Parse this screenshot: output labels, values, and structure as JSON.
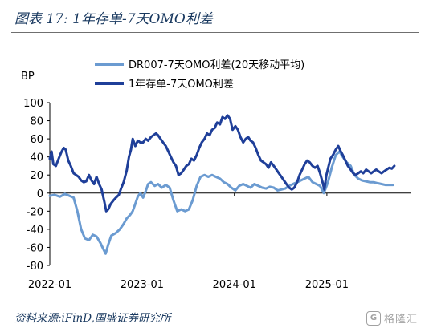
{
  "header": {
    "title": "图表 17:  1年存单-7天OMO利差"
  },
  "footer": {
    "source": "资料来源:iFinD,国盛证券研究所",
    "watermark_text": "格隆汇"
  },
  "colors": {
    "series_light": "#6b9bd1",
    "series_dark": "#1f3f99",
    "title_text": "#17375e",
    "axis": "#000000"
  },
  "chart_data": {
    "type": "line",
    "title": "",
    "ylabel": "BP",
    "xlabel": "",
    "ylim": [
      -80,
      100
    ],
    "yticks": [
      -80,
      -60,
      -40,
      -20,
      0,
      20,
      40,
      60,
      80,
      100
    ],
    "xlim": [
      "2022-01-01",
      "2025-12-01"
    ],
    "xticks": [
      "2022-01",
      "2023-01",
      "2024-01",
      "2025-01"
    ],
    "grid": false,
    "legend_position": "top",
    "series": [
      {
        "name": "DR007-7天OMO利差(20天移动平均)",
        "color": "#6b9bd1",
        "points": [
          [
            "2022-01-01",
            -3
          ],
          [
            "2022-01-20",
            -2
          ],
          [
            "2022-02-10",
            -4
          ],
          [
            "2022-03-01",
            -1
          ],
          [
            "2022-03-20",
            -3
          ],
          [
            "2022-04-05",
            -5
          ],
          [
            "2022-04-20",
            -20
          ],
          [
            "2022-05-05",
            -40
          ],
          [
            "2022-05-20",
            -50
          ],
          [
            "2022-06-05",
            -52
          ],
          [
            "2022-06-20",
            -46
          ],
          [
            "2022-07-05",
            -48
          ],
          [
            "2022-07-20",
            -55
          ],
          [
            "2022-08-01",
            -62
          ],
          [
            "2022-08-10",
            -67
          ],
          [
            "2022-08-20",
            -57
          ],
          [
            "2022-09-01",
            -47
          ],
          [
            "2022-09-20",
            -44
          ],
          [
            "2022-10-05",
            -40
          ],
          [
            "2022-10-20",
            -34
          ],
          [
            "2022-11-01",
            -28
          ],
          [
            "2022-11-15",
            -24
          ],
          [
            "2022-11-25",
            -20
          ],
          [
            "2022-12-05",
            -12
          ],
          [
            "2022-12-15",
            -4
          ],
          [
            "2022-12-25",
            0
          ],
          [
            "2023-01-05",
            -5
          ],
          [
            "2023-01-15",
            2
          ],
          [
            "2023-01-25",
            10
          ],
          [
            "2023-02-05",
            12
          ],
          [
            "2023-02-20",
            8
          ],
          [
            "2023-03-05",
            10
          ],
          [
            "2023-03-20",
            6
          ],
          [
            "2023-04-05",
            9
          ],
          [
            "2023-04-20",
            6
          ],
          [
            "2023-05-05",
            -8
          ],
          [
            "2023-05-20",
            -20
          ],
          [
            "2023-06-05",
            -18
          ],
          [
            "2023-06-20",
            -20
          ],
          [
            "2023-07-05",
            -18
          ],
          [
            "2023-07-20",
            -8
          ],
          [
            "2023-08-05",
            8
          ],
          [
            "2023-08-20",
            18
          ],
          [
            "2023-09-05",
            20
          ],
          [
            "2023-09-20",
            18
          ],
          [
            "2023-10-05",
            20
          ],
          [
            "2023-10-20",
            18
          ],
          [
            "2023-11-05",
            16
          ],
          [
            "2023-11-20",
            12
          ],
          [
            "2023-12-05",
            10
          ],
          [
            "2023-12-20",
            6
          ],
          [
            "2024-01-05",
            3
          ],
          [
            "2024-01-20",
            8
          ],
          [
            "2024-02-05",
            10
          ],
          [
            "2024-02-20",
            8
          ],
          [
            "2024-03-05",
            6
          ],
          [
            "2024-03-20",
            10
          ],
          [
            "2024-04-05",
            8
          ],
          [
            "2024-04-20",
            6
          ],
          [
            "2024-05-05",
            5
          ],
          [
            "2024-05-20",
            7
          ],
          [
            "2024-06-05",
            6
          ],
          [
            "2024-06-20",
            3
          ],
          [
            "2024-07-05",
            4
          ],
          [
            "2024-07-20",
            5
          ],
          [
            "2024-08-05",
            8
          ],
          [
            "2024-08-20",
            10
          ],
          [
            "2024-09-05",
            12
          ],
          [
            "2024-09-20",
            14
          ],
          [
            "2024-10-05",
            16
          ],
          [
            "2024-10-20",
            18
          ],
          [
            "2024-11-05",
            12
          ],
          [
            "2024-11-20",
            10
          ],
          [
            "2024-12-05",
            8
          ],
          [
            "2024-12-20",
            0
          ],
          [
            "2025-01-05",
            12
          ],
          [
            "2025-01-20",
            28
          ],
          [
            "2025-02-05",
            42
          ],
          [
            "2025-02-20",
            46
          ],
          [
            "2025-03-05",
            40
          ],
          [
            "2025-03-20",
            34
          ],
          [
            "2025-04-05",
            30
          ],
          [
            "2025-04-20",
            20
          ],
          [
            "2025-05-05",
            16
          ],
          [
            "2025-05-20",
            14
          ],
          [
            "2025-06-05",
            13
          ],
          [
            "2025-06-20",
            12
          ],
          [
            "2025-07-05",
            12
          ],
          [
            "2025-07-20",
            11
          ],
          [
            "2025-08-05",
            10
          ],
          [
            "2025-08-20",
            9
          ],
          [
            "2025-09-05",
            9
          ],
          [
            "2025-09-20",
            9
          ]
        ]
      },
      {
        "name": "1年存单-7天OMO利差",
        "color": "#1f3f99",
        "points": [
          [
            "2022-01-01",
            38
          ],
          [
            "2022-01-08",
            46
          ],
          [
            "2022-01-15",
            32
          ],
          [
            "2022-01-25",
            30
          ],
          [
            "2022-02-05",
            38
          ],
          [
            "2022-02-15",
            45
          ],
          [
            "2022-02-25",
            50
          ],
          [
            "2022-03-05",
            48
          ],
          [
            "2022-03-15",
            36
          ],
          [
            "2022-03-25",
            30
          ],
          [
            "2022-04-05",
            22
          ],
          [
            "2022-04-15",
            20
          ],
          [
            "2022-04-25",
            18
          ],
          [
            "2022-05-05",
            14
          ],
          [
            "2022-05-15",
            12
          ],
          [
            "2022-05-25",
            13
          ],
          [
            "2022-06-05",
            20
          ],
          [
            "2022-06-15",
            14
          ],
          [
            "2022-06-25",
            10
          ],
          [
            "2022-07-05",
            18
          ],
          [
            "2022-07-15",
            10
          ],
          [
            "2022-07-25",
            4
          ],
          [
            "2022-08-05",
            -10
          ],
          [
            "2022-08-12",
            -20
          ],
          [
            "2022-08-20",
            -18
          ],
          [
            "2022-08-30",
            -12
          ],
          [
            "2022-09-10",
            -8
          ],
          [
            "2022-09-20",
            -5
          ],
          [
            "2022-10-01",
            -2
          ],
          [
            "2022-10-10",
            5
          ],
          [
            "2022-10-20",
            12
          ],
          [
            "2022-11-01",
            25
          ],
          [
            "2022-11-10",
            40
          ],
          [
            "2022-11-18",
            48
          ],
          [
            "2022-11-25",
            60
          ],
          [
            "2022-12-05",
            52
          ],
          [
            "2022-12-15",
            58
          ],
          [
            "2022-12-25",
            56
          ],
          [
            "2023-01-05",
            56
          ],
          [
            "2023-01-15",
            60
          ],
          [
            "2023-01-25",
            58
          ],
          [
            "2023-02-05",
            62
          ],
          [
            "2023-02-15",
            64
          ],
          [
            "2023-02-25",
            66
          ],
          [
            "2023-03-05",
            64
          ],
          [
            "2023-03-15",
            60
          ],
          [
            "2023-03-25",
            56
          ],
          [
            "2023-04-05",
            52
          ],
          [
            "2023-04-15",
            46
          ],
          [
            "2023-04-25",
            40
          ],
          [
            "2023-05-05",
            34
          ],
          [
            "2023-05-15",
            30
          ],
          [
            "2023-05-25",
            20
          ],
          [
            "2023-06-05",
            22
          ],
          [
            "2023-06-15",
            26
          ],
          [
            "2023-06-25",
            30
          ],
          [
            "2023-07-05",
            32
          ],
          [
            "2023-07-15",
            38
          ],
          [
            "2023-07-25",
            36
          ],
          [
            "2023-08-05",
            42
          ],
          [
            "2023-08-15",
            50
          ],
          [
            "2023-08-25",
            56
          ],
          [
            "2023-09-05",
            60
          ],
          [
            "2023-09-15",
            66
          ],
          [
            "2023-09-25",
            64
          ],
          [
            "2023-10-05",
            70
          ],
          [
            "2023-10-15",
            72
          ],
          [
            "2023-10-25",
            78
          ],
          [
            "2023-11-05",
            76
          ],
          [
            "2023-11-15",
            84
          ],
          [
            "2023-11-25",
            82
          ],
          [
            "2023-12-05",
            86
          ],
          [
            "2023-12-15",
            82
          ],
          [
            "2023-12-25",
            70
          ],
          [
            "2024-01-05",
            74
          ],
          [
            "2024-01-15",
            70
          ],
          [
            "2024-01-25",
            62
          ],
          [
            "2024-02-05",
            56
          ],
          [
            "2024-02-15",
            60
          ],
          [
            "2024-02-25",
            62
          ],
          [
            "2024-03-05",
            58
          ],
          [
            "2024-03-15",
            56
          ],
          [
            "2024-03-25",
            50
          ],
          [
            "2024-04-05",
            42
          ],
          [
            "2024-04-15",
            36
          ],
          [
            "2024-04-25",
            34
          ],
          [
            "2024-05-05",
            32
          ],
          [
            "2024-05-15",
            28
          ],
          [
            "2024-05-25",
            34
          ],
          [
            "2024-06-05",
            30
          ],
          [
            "2024-06-15",
            26
          ],
          [
            "2024-06-25",
            22
          ],
          [
            "2024-07-05",
            18
          ],
          [
            "2024-07-15",
            14
          ],
          [
            "2024-07-25",
            10
          ],
          [
            "2024-08-05",
            6
          ],
          [
            "2024-08-15",
            4
          ],
          [
            "2024-08-25",
            6
          ],
          [
            "2024-09-05",
            12
          ],
          [
            "2024-09-15",
            20
          ],
          [
            "2024-09-25",
            26
          ],
          [
            "2024-10-05",
            32
          ],
          [
            "2024-10-15",
            36
          ],
          [
            "2024-10-25",
            34
          ],
          [
            "2024-11-05",
            30
          ],
          [
            "2024-11-15",
            28
          ],
          [
            "2024-11-25",
            30
          ],
          [
            "2024-12-05",
            22
          ],
          [
            "2024-12-15",
            12
          ],
          [
            "2024-12-22",
            4
          ],
          [
            "2024-12-30",
            20
          ],
          [
            "2025-01-08",
            30
          ],
          [
            "2025-01-15",
            38
          ],
          [
            "2025-01-25",
            42
          ],
          [
            "2025-02-05",
            48
          ],
          [
            "2025-02-15",
            52
          ],
          [
            "2025-02-25",
            46
          ],
          [
            "2025-03-05",
            42
          ],
          [
            "2025-03-15",
            36
          ],
          [
            "2025-03-25",
            30
          ],
          [
            "2025-04-05",
            26
          ],
          [
            "2025-04-15",
            22
          ],
          [
            "2025-04-25",
            20
          ],
          [
            "2025-05-05",
            22
          ],
          [
            "2025-05-15",
            24
          ],
          [
            "2025-05-25",
            22
          ],
          [
            "2025-06-05",
            26
          ],
          [
            "2025-06-15",
            24
          ],
          [
            "2025-06-25",
            22
          ],
          [
            "2025-07-05",
            24
          ],
          [
            "2025-07-15",
            26
          ],
          [
            "2025-07-25",
            24
          ],
          [
            "2025-08-05",
            22
          ],
          [
            "2025-08-15",
            24
          ],
          [
            "2025-08-25",
            26
          ],
          [
            "2025-09-05",
            28
          ],
          [
            "2025-09-15",
            27
          ],
          [
            "2025-09-25",
            30
          ]
        ]
      }
    ]
  }
}
